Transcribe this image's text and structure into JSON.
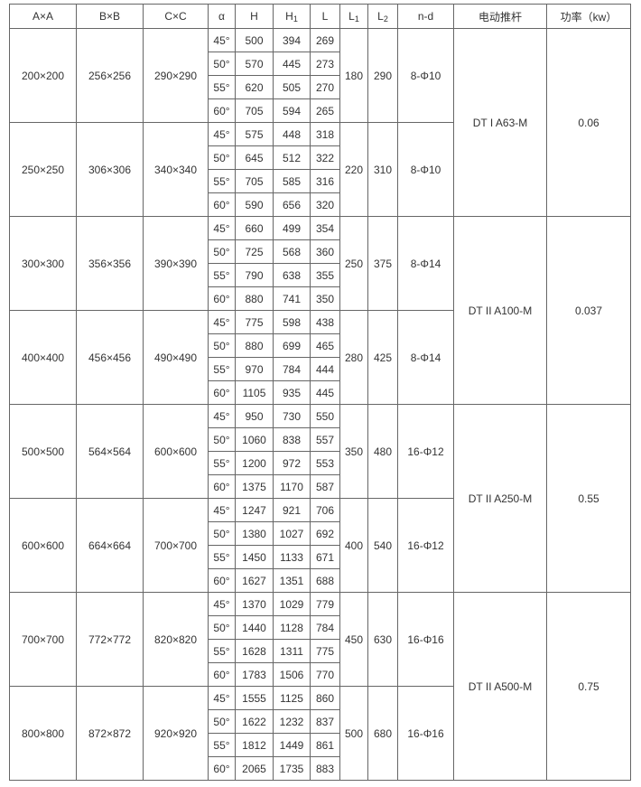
{
  "headers": [
    "A×A",
    "B×B",
    "C×C",
    "α",
    "H",
    "H|1",
    "L",
    "L|1",
    "L|2",
    "n-d",
    "电动推杆",
    "功率（kw）"
  ],
  "groups": [
    {
      "a": "200×200",
      "b": "256×256",
      "c": "290×290",
      "l1": "180",
      "l2": "290",
      "nd": "8-Φ10",
      "rows": [
        [
          "45°",
          "500",
          "394",
          "269"
        ],
        [
          "50°",
          "570",
          "445",
          "273"
        ],
        [
          "55°",
          "620",
          "505",
          "270"
        ],
        [
          "60°",
          "705",
          "594",
          "265"
        ]
      ]
    },
    {
      "a": "250×250",
      "b": "306×306",
      "c": "340×340",
      "l1": "220",
      "l2": "310",
      "nd": "8-Φ10",
      "rows": [
        [
          "45°",
          "575",
          "448",
          "318"
        ],
        [
          "50°",
          "645",
          "512",
          "322"
        ],
        [
          "55°",
          "705",
          "585",
          "316"
        ],
        [
          "60°",
          "590",
          "656",
          "320"
        ]
      ]
    },
    {
      "a": "300×300",
      "b": "356×356",
      "c": "390×390",
      "l1": "250",
      "l2": "375",
      "nd": "8-Φ14",
      "rows": [
        [
          "45°",
          "660",
          "499",
          "354"
        ],
        [
          "50°",
          "725",
          "568",
          "360"
        ],
        [
          "55°",
          "790",
          "638",
          "355"
        ],
        [
          "60°",
          "880",
          "741",
          "350"
        ]
      ]
    },
    {
      "a": "400×400",
      "b": "456×456",
      "c": "490×490",
      "l1": "280",
      "l2": "425",
      "nd": "8-Φ14",
      "rows": [
        [
          "45°",
          "775",
          "598",
          "438"
        ],
        [
          "50°",
          "880",
          "699",
          "465"
        ],
        [
          "55°",
          "970",
          "784",
          "444"
        ],
        [
          "60°",
          "1105",
          "935",
          "445"
        ]
      ]
    },
    {
      "a": "500×500",
      "b": "564×564",
      "c": "600×600",
      "l1": "350",
      "l2": "480",
      "nd": "16-Φ12",
      "rows": [
        [
          "45°",
          "950",
          "730",
          "550"
        ],
        [
          "50°",
          "1060",
          "838",
          "557"
        ],
        [
          "55°",
          "1200",
          "972",
          "553"
        ],
        [
          "60°",
          "1375",
          "1170",
          "587"
        ]
      ]
    },
    {
      "a": "600×600",
      "b": "664×664",
      "c": "700×700",
      "l1": "400",
      "l2": "540",
      "nd": "16-Φ12",
      "rows": [
        [
          "45°",
          "1247",
          "921",
          "706"
        ],
        [
          "50°",
          "1380",
          "1027",
          "692"
        ],
        [
          "55°",
          "1450",
          "1133",
          "671"
        ],
        [
          "60°",
          "1627",
          "1351",
          "688"
        ]
      ]
    },
    {
      "a": "700×700",
      "b": "772×772",
      "c": "820×820",
      "l1": "450",
      "l2": "630",
      "nd": "16-Φ16",
      "rows": [
        [
          "45°",
          "1370",
          "1029",
          "779"
        ],
        [
          "50°",
          "1440",
          "1128",
          "784"
        ],
        [
          "55°",
          "1628",
          "1311",
          "775"
        ],
        [
          "60°",
          "1783",
          "1506",
          "770"
        ]
      ]
    },
    {
      "a": "800×800",
      "b": "872×872",
      "c": "920×920",
      "l1": "500",
      "l2": "680",
      "nd": "16-Φ16",
      "rows": [
        [
          "45°",
          "1555",
          "1125",
          "860"
        ],
        [
          "50°",
          "1622",
          "1232",
          "837"
        ],
        [
          "55°",
          "1812",
          "1449",
          "861"
        ],
        [
          "60°",
          "2065",
          "1735",
          "883"
        ]
      ]
    }
  ],
  "motors": [
    {
      "name": "DT I A63-M",
      "power": "0.06"
    },
    {
      "name": "DT II A100-M",
      "power": "0.037"
    },
    {
      "name": "DT II A250-M",
      "power": "0.55"
    },
    {
      "name": "DT II A500-M",
      "power": "0.75"
    }
  ]
}
